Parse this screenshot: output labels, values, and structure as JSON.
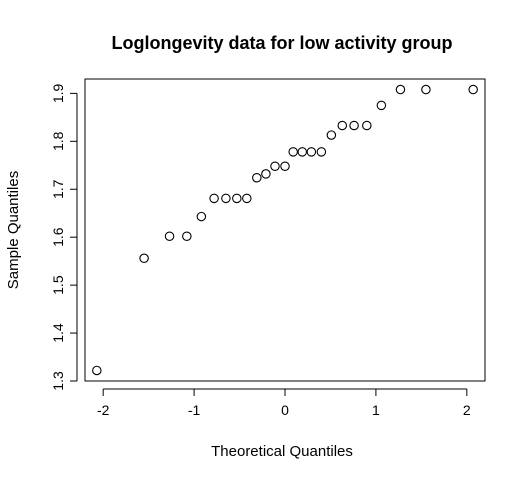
{
  "chart_data": {
    "type": "scatter",
    "title": "Loglongevity data for low activity group",
    "xlabel": "Theoretical Quantiles",
    "ylabel": "Sample Quantiles",
    "xlim": [
      -2.2,
      2.2
    ],
    "ylim": [
      1.3,
      1.93
    ],
    "xticks": [
      -2,
      -1,
      0,
      1,
      2
    ],
    "xtick_labels": [
      "-2",
      "-1",
      "0",
      "1",
      "2"
    ],
    "yticks": [
      1.3,
      1.4,
      1.5,
      1.6,
      1.7,
      1.8,
      1.9
    ],
    "ytick_labels": [
      "1.3",
      "1.4",
      "1.5",
      "1.6",
      "1.7",
      "1.8",
      "1.9"
    ],
    "grid": false,
    "marker": "open-circle",
    "series": [
      {
        "x": [
          -2.07,
          -1.55,
          -1.27,
          -1.08,
          -0.92,
          -0.78,
          -0.65,
          -0.53,
          -0.42,
          -0.31,
          -0.21,
          -0.11,
          0.0,
          0.09,
          0.19,
          0.29,
          0.4,
          0.51,
          0.63,
          0.76,
          0.9,
          1.06,
          1.27,
          1.55,
          2.07
        ],
        "y": [
          1.322,
          1.556,
          1.602,
          1.602,
          1.643,
          1.681,
          1.681,
          1.681,
          1.681,
          1.724,
          1.732,
          1.748,
          1.748,
          1.778,
          1.778,
          1.778,
          1.778,
          1.813,
          1.833,
          1.833,
          1.833,
          1.875,
          1.908,
          1.908,
          1.908
        ]
      }
    ]
  }
}
